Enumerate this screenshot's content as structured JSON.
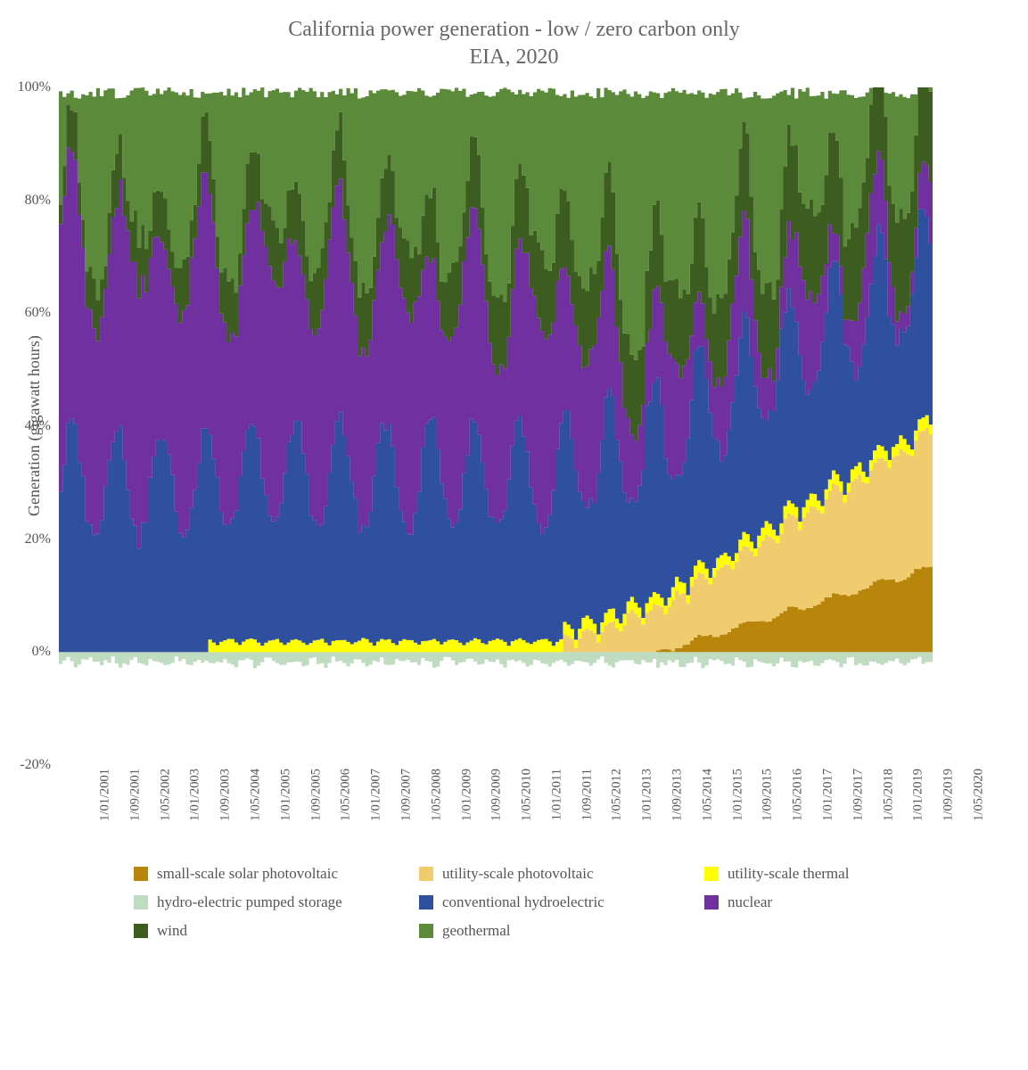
{
  "chart": {
    "title": "California power generation - low / zero carbon only",
    "subtitle": "EIA, 2020",
    "ylabel": "Generation (gigawatt hours)",
    "title_fontsize": 24,
    "label_fontsize": 18,
    "tick_fontsize": 15,
    "background_color": "#ffffff",
    "font_family": "Georgia, serif",
    "ylim": [
      -20,
      100
    ],
    "ytick_step": 20,
    "yticks": [
      "-20%",
      "0%",
      "20%",
      "40%",
      "60%",
      "80%",
      "100%"
    ],
    "xticks": [
      "1/01/2001",
      "1/09/2001",
      "1/05/2002",
      "1/01/2003",
      "1/09/2003",
      "1/05/2004",
      "1/01/2005",
      "1/09/2005",
      "1/05/2006",
      "1/01/2007",
      "1/09/2007",
      "1/05/2008",
      "1/01/2009",
      "1/09/2009",
      "1/05/2010",
      "1/01/2011",
      "1/09/2011",
      "1/05/2012",
      "1/01/2013",
      "1/09/2013",
      "1/05/2014",
      "1/01/2015",
      "1/09/2015",
      "1/05/2016",
      "1/01/2017",
      "1/09/2017",
      "1/05/2018",
      "1/01/2019",
      "1/09/2019",
      "1/05/2020"
    ],
    "type": "stacked-area",
    "n_points": 234,
    "series": [
      {
        "key": "small_solar",
        "label": "small-scale solar photovoltaic",
        "color": "#b8860b"
      },
      {
        "key": "util_pv",
        "label": "utility-scale photovoltaic",
        "color": "#f0cc6e"
      },
      {
        "key": "util_thermal",
        "label": "utility-scale thermal",
        "color": "#ffff00"
      },
      {
        "key": "pumped",
        "label": "hydro-electric pumped storage",
        "color": "#c0dcc0"
      },
      {
        "key": "hydro",
        "label": "conventional hydroelectric",
        "color": "#2f4f9f"
      },
      {
        "key": "nuclear",
        "label": "nuclear",
        "color": "#7030a0"
      },
      {
        "key": "wind",
        "label": "wind",
        "color": "#3c5c20"
      },
      {
        "key": "geothermal",
        "label": "geothermal",
        "color": "#5a8a3a"
      }
    ],
    "series_params": {
      "small_solar": {
        "start_idx": 160,
        "end_val": 15,
        "freq": 12,
        "amp": 2,
        "noise": 0.6
      },
      "util_pv": {
        "start_idx": 135,
        "end_val": 22,
        "freq": 12,
        "amp": 3,
        "noise": 1.0
      },
      "util_thermal": {
        "start_idx": 40,
        "base": 1.3,
        "freq": 12,
        "amp": 1.0,
        "noise": 0.4,
        "cap": 4
      },
      "pumped": {
        "base": -1.8,
        "freq": 6,
        "amp": 1.8,
        "noise": 1.2
      },
      "hydro": {
        "base": 30,
        "trend_end": 27,
        "freq": 12,
        "amp": 10,
        "noise": 4,
        "phase": 0
      },
      "nuclear": {
        "base": 42,
        "trend_end": 22,
        "freq": 18,
        "amp": 6,
        "noise": 3,
        "phase": 3,
        "drop_idx": 138,
        "drop_amt": 14
      },
      "wind": {
        "base": 4,
        "trend_end": 14,
        "freq": 12,
        "amp": 4,
        "noise": 2,
        "phase": 6
      },
      "geothermal": {
        "fill_to": 100
      }
    }
  }
}
